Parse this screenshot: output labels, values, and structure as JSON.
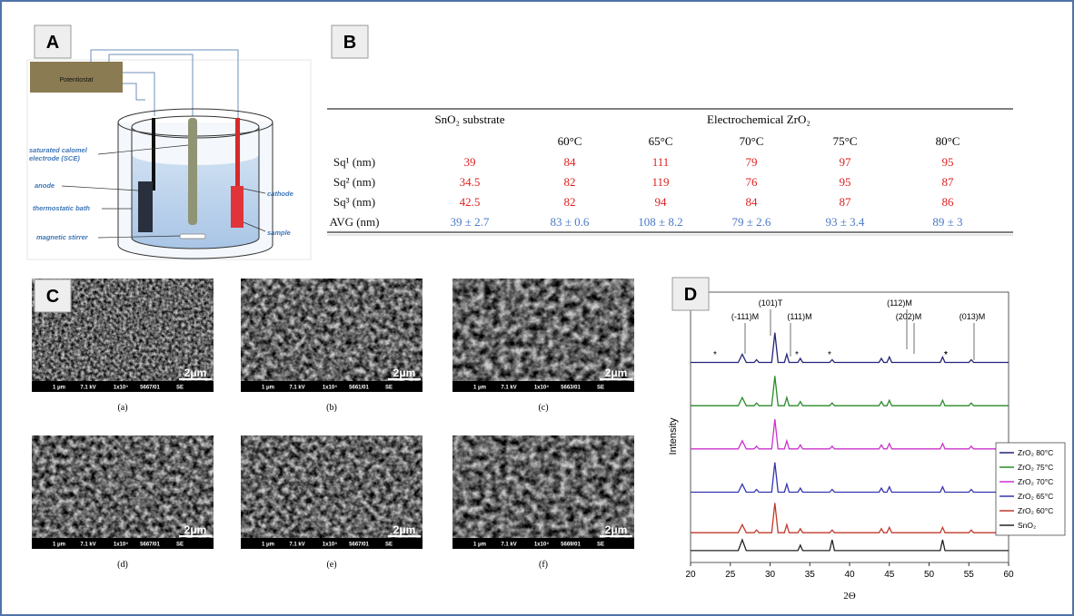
{
  "panel_a": {
    "label": "A",
    "potentiostat": "Potentiostat",
    "labels": {
      "sce": [
        "saturated calomel",
        "electrode (SCE)"
      ],
      "anode": "anode",
      "bath": "thermostatic bath",
      "stirrer": "magnetic stirrer",
      "cathode": "cathode",
      "sample": "sample"
    }
  },
  "panel_b": {
    "label": "B",
    "table": {
      "group_headers": [
        "SnO₂ substrate",
        "Electrochemical ZrO₂"
      ],
      "temperatures": [
        "60°C",
        "65°C",
        "70°C",
        "75°C",
        "80°C"
      ],
      "rows": [
        [
          "Sq¹ (nm)",
          39,
          84,
          111,
          79,
          97,
          95
        ],
        [
          "Sq² (nm)",
          34.5,
          82,
          119,
          76,
          95,
          87
        ],
        [
          "Sq³ (nm)",
          42.5,
          82,
          94,
          84,
          87,
          86
        ],
        [
          "AVG (nm)",
          "39 ± 2.7",
          "83 ± 0.6",
          "108 ± 8.2",
          "79 ± 2.6",
          "93 ± 3.4",
          "89 ± 3"
        ]
      ]
    }
  },
  "panel_c": {
    "label": "C",
    "images": [
      {
        "scale": "2μm",
        "info": [
          "1 μm",
          "7.1 kV",
          "1x10⁴",
          "5667/01",
          "SE"
        ],
        "caption": "(a)"
      },
      {
        "scale": "2μm",
        "info": [
          "1 μm",
          "7.1 kV",
          "1x10⁴",
          "5661/01",
          "SE"
        ],
        "caption": "(b)"
      },
      {
        "scale": "2μm",
        "info": [
          "1 μm",
          "7.1 kV",
          "1x10⁴",
          "5663/01",
          "SE"
        ],
        "caption": "(c)"
      },
      {
        "scale": "2μm",
        "info": [
          "1 μm",
          "7.1 kV",
          "1x10⁴",
          "5667/01",
          "SE"
        ],
        "caption": "(d)"
      },
      {
        "scale": "2μm",
        "info": [
          "1 μm",
          "7.1 kV",
          "1x10⁴",
          "5667/01",
          "SE"
        ],
        "caption": "(e)"
      },
      {
        "scale": "2μm",
        "info": [
          "1 μm",
          "7.1 kV",
          "1x10⁴",
          "5669/01",
          "SE"
        ],
        "caption": "(f)"
      }
    ]
  },
  "panel_d_label": "D",
  "chart_data": {
    "type": "line",
    "x_label": "2Θ",
    "y_label": "Intensity",
    "x": [
      20,
      26,
      26.5,
      27,
      28,
      28.3,
      28.6,
      30.2,
      30.6,
      31,
      31.8,
      32.1,
      32.4,
      33.5,
      33.8,
      34.1,
      37.5,
      37.8,
      38.1,
      43.7,
      44,
      44.3,
      44.7,
      45,
      45.3,
      51.4,
      51.7,
      52,
      55,
      55.3,
      55.6,
      60
    ],
    "xlim": [
      20,
      60
    ],
    "xticks": [
      20,
      25,
      30,
      35,
      40,
      45,
      50,
      55,
      60
    ],
    "ylim": [
      0,
      100
    ],
    "legend": "right",
    "annotations": [
      "(101)T",
      "(-111)M",
      "(111)M",
      "(112)M",
      "(202)M",
      "(013)M"
    ],
    "peak_markers": [
      "*",
      "*",
      "*",
      "*",
      "*"
    ],
    "series": [
      {
        "name": "ZrO₂ 80°C",
        "color": "#23237a",
        "values": [
          74,
          74,
          77,
          74,
          74,
          75,
          74,
          74,
          85,
          74,
          74,
          77,
          74,
          74,
          75.5,
          74,
          74,
          75,
          74,
          74,
          75.5,
          74,
          74,
          76,
          74,
          74,
          76,
          74,
          74,
          75,
          74,
          74
        ]
      },
      {
        "name": "ZrO₂ 75°C",
        "color": "#2a8a2a",
        "values": [
          58,
          58,
          61,
          58,
          58,
          59,
          58,
          58,
          69,
          58,
          58,
          61,
          58,
          58,
          59.5,
          58,
          58,
          59,
          58,
          58,
          59.5,
          58,
          58,
          60,
          58,
          58,
          60,
          58,
          58,
          59,
          58,
          58
        ]
      },
      {
        "name": "ZrO₂ 70°C",
        "color": "#cc33cc",
        "values": [
          42,
          42,
          45,
          42,
          42,
          43,
          42,
          42,
          53,
          42,
          42,
          45,
          42,
          42,
          43.5,
          42,
          42,
          43,
          42,
          42,
          43.5,
          42,
          42,
          44,
          42,
          42,
          44,
          42,
          42,
          43,
          42,
          42
        ]
      },
      {
        "name": "ZrO₂ 65°C",
        "color": "#3434b0",
        "values": [
          26,
          26,
          29,
          26,
          26,
          27,
          26,
          26,
          37,
          26,
          26,
          29,
          26,
          26,
          27.5,
          26,
          26,
          27,
          26,
          26,
          27.5,
          26,
          26,
          28,
          26,
          26,
          28,
          26,
          26,
          27,
          26,
          26
        ]
      },
      {
        "name": "ZrO₂ 60°C",
        "color": "#c0392b",
        "values": [
          11,
          11,
          14,
          11,
          11,
          12,
          11,
          11,
          22,
          11,
          11,
          14,
          11,
          11,
          12.5,
          11,
          11,
          12,
          11,
          11,
          12.5,
          11,
          11,
          13,
          11,
          11,
          13,
          11,
          11,
          12,
          11,
          11
        ]
      },
      {
        "name": "SnO₂",
        "color": "#222222",
        "values": [
          4.4,
          4.4,
          8.4,
          4.4,
          4.4,
          4.4,
          4.4,
          4.4,
          4.4,
          4.4,
          4.4,
          4.4,
          4.4,
          4.4,
          6.4,
          4.4,
          4.4,
          8.4,
          4.4,
          4.4,
          4.4,
          4.4,
          4.4,
          4.4,
          4.4,
          4.4,
          8.4,
          4.4,
          4.4,
          4.4,
          4.4,
          4.4
        ]
      }
    ]
  }
}
